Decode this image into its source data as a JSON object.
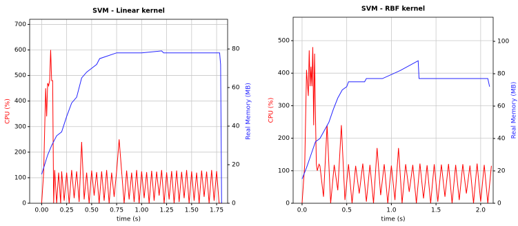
{
  "chart_data": [
    {
      "type": "line",
      "title": "SVM - Linear kernel",
      "xlabel": "time (s)",
      "ylabel": "CPU (%)",
      "y2label": "Real Memory (MB)",
      "grid": true,
      "xlim": [
        -0.12,
        1.86
      ],
      "ylim": [
        0,
        720
      ],
      "y2lim": [
        0,
        95.4
      ],
      "xticks": [
        {
          "value": 0,
          "label": "0.00"
        },
        {
          "value": 0.25,
          "label": "0.25"
        },
        {
          "value": 0.5,
          "label": "0.50"
        },
        {
          "value": 0.75,
          "label": "0.75"
        },
        {
          "value": 1,
          "label": "1.00"
        },
        {
          "value": 1.25,
          "label": "1.25"
        },
        {
          "value": 1.5,
          "label": "1.50"
        },
        {
          "value": 1.75,
          "label": "1.75"
        }
      ],
      "yticks": [
        0,
        100,
        200,
        300,
        400,
        500,
        600,
        700
      ],
      "y2ticks": [
        0,
        20,
        40,
        60,
        80
      ],
      "series": [
        {
          "color": "#ff0000",
          "axis": "y",
          "x": [
            0,
            0.02,
            0.04,
            0.05,
            0.06,
            0.07,
            0.08,
            0.09,
            0.1,
            0.11,
            0.12,
            0.13,
            0.15,
            0.17,
            0.19,
            0.2,
            0.225,
            0.25,
            0.275,
            0.3,
            0.325,
            0.35,
            0.375,
            0.4,
            0.425,
            0.45,
            0.475,
            0.5,
            0.525,
            0.55,
            0.575,
            0.6,
            0.625,
            0.65,
            0.675,
            0.7,
            0.725,
            0.75,
            0.775,
            0.8,
            0.825,
            0.85,
            0.875,
            0.9,
            0.925,
            0.95,
            0.975,
            1,
            1.025,
            1.05,
            1.075,
            1.1,
            1.125,
            1.15,
            1.175,
            1.2,
            1.225,
            1.25,
            1.275,
            1.3,
            1.325,
            1.35,
            1.375,
            1.4,
            1.425,
            1.45,
            1.475,
            1.5,
            1.525,
            1.55,
            1.575,
            1.6,
            1.625,
            1.65,
            1.675,
            1.7,
            1.725,
            1.75,
            1.775,
            1.8
          ],
          "values": [
            0,
            120,
            450,
            340,
            470,
            460,
            480,
            600,
            480,
            480,
            0,
            130,
            0,
            120,
            0,
            125,
            10,
            120,
            0,
            130,
            20,
            125,
            5,
            240,
            15,
            120,
            0,
            128,
            30,
            122,
            0,
            125,
            10,
            130,
            0,
            120,
            25,
            126,
            250,
            124,
            0,
            128,
            15,
            120,
            5,
            130,
            0,
            125,
            20,
            122,
            0,
            127,
            10,
            124,
            30,
            130,
            0,
            121,
            15,
            126,
            0,
            128,
            5,
            123,
            20,
            130,
            0,
            125,
            10,
            120,
            0,
            128,
            25,
            124,
            0,
            130,
            10,
            126,
            0,
            0
          ]
        },
        {
          "color": "#2222ff",
          "axis": "y2",
          "x": [
            0,
            0.03,
            0.06,
            0.1,
            0.15,
            0.2,
            0.25,
            0.3,
            0.35,
            0.4,
            0.45,
            0.5,
            0.55,
            0.58,
            0.75,
            1.0,
            1.2,
            1.22,
            1.5,
            1.75,
            1.78,
            1.79,
            1.8
          ],
          "values": [
            15,
            20,
            25,
            30,
            35,
            37,
            45,
            52,
            55,
            65,
            68,
            70,
            72,
            75,
            78,
            78,
            79,
            78,
            78,
            78,
            78,
            72,
            0
          ]
        }
      ]
    },
    {
      "type": "line",
      "title": "SVM - RBF kernel",
      "xlabel": "time (s)",
      "ylabel": "CPU (%)",
      "y2label": "Real Memory (MB)",
      "grid": true,
      "xlim": [
        -0.1,
        2.14
      ],
      "ylim": [
        0,
        572
      ],
      "y2lim": [
        0,
        114.9
      ],
      "xticks": [
        {
          "value": 0,
          "label": "0.0"
        },
        {
          "value": 0.5,
          "label": "0.5"
        },
        {
          "value": 1,
          "label": "1.0"
        },
        {
          "value": 1.5,
          "label": "1.5"
        },
        {
          "value": 2,
          "label": "2.0"
        }
      ],
      "yticks": [
        0,
        100,
        200,
        300,
        400,
        500
      ],
      "y2ticks": [
        0,
        20,
        40,
        60,
        80,
        100
      ],
      "series": [
        {
          "color": "#ff0000",
          "axis": "y",
          "x": [
            0,
            0.03,
            0.05,
            0.07,
            0.08,
            0.09,
            0.1,
            0.11,
            0.12,
            0.13,
            0.14,
            0.15,
            0.16,
            0.17,
            0.19,
            0.2,
            0.24,
            0.28,
            0.32,
            0.36,
            0.4,
            0.44,
            0.48,
            0.52,
            0.56,
            0.6,
            0.64,
            0.68,
            0.72,
            0.76,
            0.8,
            0.84,
            0.88,
            0.92,
            0.96,
            1,
            1.04,
            1.08,
            1.12,
            1.16,
            1.2,
            1.24,
            1.28,
            1.32,
            1.36,
            1.4,
            1.44,
            1.48,
            1.52,
            1.56,
            1.6,
            1.64,
            1.68,
            1.72,
            1.76,
            1.8,
            1.84,
            1.88,
            1.92,
            1.96,
            2,
            2.04,
            2.08,
            2.12
          ],
          "values": [
            0,
            120,
            410,
            330,
            470,
            360,
            420,
            360,
            480,
            240,
            460,
            270,
            120,
            100,
            120,
            115,
            20,
            240,
            0,
            118,
            40,
            240,
            10,
            120,
            0,
            115,
            30,
            122,
            5,
            118,
            0,
            170,
            25,
            120,
            0,
            116,
            10,
            170,
            0,
            120,
            35,
            118,
            0,
            122,
            15,
            117,
            0,
            120,
            5,
            119,
            20,
            121,
            0,
            118,
            10,
            120,
            30,
            116,
            0,
            122,
            5,
            118,
            0,
            115
          ]
        },
        {
          "color": "#2222ff",
          "axis": "y2",
          "x": [
            0,
            0.05,
            0.1,
            0.15,
            0.2,
            0.25,
            0.3,
            0.35,
            0.4,
            0.45,
            0.5,
            0.52,
            0.7,
            0.72,
            0.9,
            1.1,
            1.3,
            1.31,
            2.05,
            2.08,
            2.1
          ],
          "values": [
            15,
            22,
            30,
            38,
            40,
            45,
            50,
            58,
            65,
            70,
            72,
            75,
            75,
            77,
            77,
            82,
            88,
            77,
            77,
            77,
            72
          ]
        }
      ]
    }
  ]
}
